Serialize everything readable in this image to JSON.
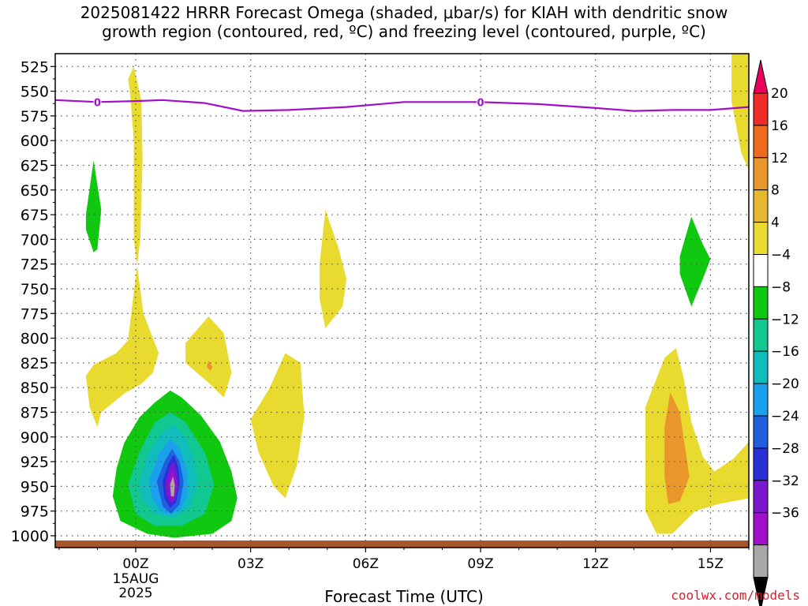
{
  "title": "2025081422 HRRR Forecast Omega (shaded, μbar/s) for KIAH with dendritic snow\ngrowth region (contoured, red, ºC) and freezing level (contoured, purple, ºC)",
  "credit": "coolwx.com/models",
  "chart_data": {
    "type": "heatmap",
    "xlabel": "Forecast Time (UTC)",
    "x_ticks": [
      "00Z",
      "03Z",
      "06Z",
      "09Z",
      "12Z",
      "15Z"
    ],
    "x_first_tick_extra": [
      "15AUG",
      "2025"
    ],
    "x_range_hours": [
      -2.1,
      16
    ],
    "y_ticks": [
      525,
      550,
      575,
      600,
      625,
      650,
      675,
      700,
      725,
      750,
      775,
      800,
      825,
      850,
      875,
      900,
      925,
      950,
      975,
      1000
    ],
    "y_range_hPa": [
      512,
      1012
    ],
    "y_axis_reversed": true,
    "grid": true,
    "colorbar": {
      "labels": [
        "20",
        "16",
        "12",
        "8",
        "4",
        "−4",
        "−8",
        "−12",
        "−16",
        "−20",
        "−24",
        "−28",
        "−32",
        "−36"
      ],
      "colors": [
        "#e8005a",
        "#f02c28",
        "#ee6b1e",
        "#e9972a",
        "#e6b830",
        "#e8da2e",
        "#ffffff",
        "#0fc80f",
        "#10c890",
        "#10bcbc",
        "#1aa0ec",
        "#2060e0",
        "#2a30d8",
        "#7a18d0",
        "#a010c8",
        "#a8a8a8",
        "#000000"
      ]
    },
    "freezing_level": {
      "label": "0",
      "color": "#a010c8",
      "points_h_hPa": [
        [
          -2.1,
          559
        ],
        [
          -1.0,
          561
        ],
        [
          0,
          560
        ],
        [
          0.7,
          559
        ],
        [
          1.8,
          562
        ],
        [
          2.8,
          570
        ],
        [
          4.0,
          569
        ],
        [
          5.5,
          566
        ],
        [
          7.0,
          561
        ],
        [
          8.0,
          561
        ],
        [
          9.0,
          561
        ],
        [
          10.5,
          563
        ],
        [
          12.0,
          567
        ],
        [
          13.0,
          570
        ],
        [
          14.0,
          569
        ],
        [
          15.0,
          569
        ],
        [
          16.0,
          566
        ]
      ],
      "label_positions_h": [
        -1.0,
        9.0
      ]
    },
    "surface_color": "#a8552e",
    "omega_regions": [
      {
        "value": 4,
        "color": "#e8da2e",
        "points_h_hPa": [
          [
            -0.2,
            538
          ],
          [
            -0.05,
            525
          ],
          [
            0.15,
            560
          ],
          [
            0.18,
            620
          ],
          [
            0.12,
            700
          ],
          [
            -0.1,
            770
          ],
          [
            -0.2,
            802
          ],
          [
            -0.5,
            815
          ],
          [
            -1.1,
            827
          ],
          [
            -1.3,
            838
          ],
          [
            -1.2,
            870
          ],
          [
            -1.0,
            890
          ],
          [
            -0.9,
            875
          ],
          [
            -0.3,
            856
          ],
          [
            0.15,
            846
          ],
          [
            0.45,
            835
          ],
          [
            0.6,
            815
          ],
          [
            0.2,
            775
          ],
          [
            -0.05,
            700
          ],
          [
            -0.05,
            600
          ],
          [
            -0.15,
            550
          ]
        ]
      },
      {
        "value": 4,
        "color": "#e8da2e",
        "points_h_hPa": [
          [
            1.3,
            805
          ],
          [
            1.9,
            778
          ],
          [
            2.3,
            795
          ],
          [
            2.5,
            835
          ],
          [
            2.3,
            860
          ],
          [
            1.9,
            845
          ],
          [
            1.3,
            825
          ]
        ]
      },
      {
        "value": 8,
        "color": "#e9972a",
        "points_h_hPa": [
          [
            1.9,
            823
          ],
          [
            2.0,
            829
          ],
          [
            1.95,
            833
          ],
          [
            1.85,
            829
          ]
        ]
      },
      {
        "value": 4,
        "color": "#e8da2e",
        "points_h_hPa": [
          [
            3.0,
            882
          ],
          [
            3.5,
            850
          ],
          [
            3.9,
            815
          ],
          [
            4.3,
            825
          ],
          [
            4.4,
            880
          ],
          [
            4.2,
            930
          ],
          [
            3.9,
            962
          ],
          [
            3.6,
            950
          ],
          [
            3.2,
            915
          ]
        ]
      },
      {
        "value": 4,
        "color": "#e8da2e",
        "points_h_hPa": [
          [
            4.8,
            725
          ],
          [
            4.95,
            670
          ],
          [
            5.3,
            710
          ],
          [
            5.5,
            740
          ],
          [
            5.4,
            768
          ],
          [
            4.95,
            790
          ],
          [
            4.8,
            760
          ]
        ]
      },
      {
        "value": 4,
        "color": "#e8da2e",
        "points_h_hPa": [
          [
            13.3,
            870
          ],
          [
            13.8,
            820
          ],
          [
            14.1,
            810
          ],
          [
            14.3,
            840
          ],
          [
            14.5,
            885
          ],
          [
            14.8,
            920
          ],
          [
            15.1,
            935
          ],
          [
            15.6,
            922
          ],
          [
            16.0,
            905
          ],
          [
            16.0,
            962
          ],
          [
            15.2,
            968
          ],
          [
            14.6,
            975
          ],
          [
            14.0,
            998
          ],
          [
            13.6,
            998
          ],
          [
            13.3,
            975
          ]
        ]
      },
      {
        "value": 8,
        "color": "#e9972a",
        "points_h_hPa": [
          [
            13.8,
            890
          ],
          [
            13.95,
            855
          ],
          [
            14.2,
            875
          ],
          [
            14.45,
            940
          ],
          [
            14.2,
            965
          ],
          [
            13.9,
            968
          ],
          [
            13.8,
            940
          ]
        ]
      },
      {
        "value": 4,
        "color": "#e8da2e",
        "points_h_hPa": [
          [
            15.55,
            512
          ],
          [
            16.0,
            512
          ],
          [
            16.0,
            630
          ],
          [
            15.8,
            612
          ],
          [
            15.55,
            560
          ]
        ]
      },
      {
        "value": -4,
        "color": "#0fc80f",
        "points_h_hPa": [
          [
            -1.3,
            675
          ],
          [
            -1.1,
            620
          ],
          [
            -0.9,
            670
          ],
          [
            -1.0,
            710
          ],
          [
            -1.1,
            713
          ],
          [
            -1.3,
            690
          ]
        ]
      },
      {
        "value": -4,
        "color": "#0fc80f",
        "points_h_hPa": [
          [
            14.2,
            717
          ],
          [
            14.5,
            677
          ],
          [
            14.8,
            705
          ],
          [
            15.0,
            720
          ],
          [
            14.8,
            740
          ],
          [
            14.5,
            768
          ],
          [
            14.2,
            735
          ]
        ]
      },
      {
        "value": -4,
        "color": "#0fc80f",
        "points_h_hPa": [
          [
            -0.6,
            960
          ],
          [
            -0.5,
            932
          ],
          [
            -0.3,
            906
          ],
          [
            0.1,
            880
          ],
          [
            0.5,
            865
          ],
          [
            0.9,
            853
          ],
          [
            1.2,
            860
          ],
          [
            1.7,
            878
          ],
          [
            2.2,
            905
          ],
          [
            2.5,
            935
          ],
          [
            2.65,
            962
          ],
          [
            2.5,
            985
          ],
          [
            2.0,
            998
          ],
          [
            1.0,
            1002
          ],
          [
            0.3,
            998
          ],
          [
            -0.4,
            985
          ]
        ]
      },
      {
        "value": -8,
        "color": "#10c890",
        "points_h_hPa": [
          [
            -0.2,
            948
          ],
          [
            0.1,
            915
          ],
          [
            0.5,
            885
          ],
          [
            0.9,
            875
          ],
          [
            1.3,
            885
          ],
          [
            1.8,
            915
          ],
          [
            2.05,
            948
          ],
          [
            1.8,
            978
          ],
          [
            1.2,
            990
          ],
          [
            0.5,
            990
          ],
          [
            0.0,
            978
          ]
        ]
      },
      {
        "value": -12,
        "color": "#10bcbc",
        "points_h_hPa": [
          [
            0.1,
            945
          ],
          [
            0.35,
            915
          ],
          [
            0.7,
            895
          ],
          [
            1.0,
            888
          ],
          [
            1.3,
            900
          ],
          [
            1.55,
            928
          ],
          [
            1.6,
            950
          ],
          [
            1.4,
            972
          ],
          [
            1.0,
            982
          ],
          [
            0.5,
            978
          ],
          [
            0.15,
            962
          ]
        ]
      },
      {
        "value": -16,
        "color": "#1aa0ec",
        "points_h_hPa": [
          [
            0.35,
            945
          ],
          [
            0.6,
            918
          ],
          [
            0.9,
            902
          ],
          [
            1.15,
            912
          ],
          [
            1.35,
            935
          ],
          [
            1.35,
            960
          ],
          [
            1.15,
            975
          ],
          [
            0.75,
            978
          ],
          [
            0.45,
            965
          ]
        ]
      },
      {
        "value": -20,
        "color": "#2060e0",
        "points_h_hPa": [
          [
            0.55,
            945
          ],
          [
            0.75,
            925
          ],
          [
            0.95,
            912
          ],
          [
            1.15,
            925
          ],
          [
            1.25,
            945
          ],
          [
            1.15,
            968
          ],
          [
            0.92,
            978
          ],
          [
            0.7,
            970
          ]
        ]
      },
      {
        "value": -24,
        "color": "#2a30d8",
        "points_h_hPa": [
          [
            0.7,
            945
          ],
          [
            0.85,
            927
          ],
          [
            1.0,
            918
          ],
          [
            1.12,
            932
          ],
          [
            1.15,
            948
          ],
          [
            1.05,
            966
          ],
          [
            0.9,
            972
          ],
          [
            0.75,
            962
          ]
        ]
      },
      {
        "value": -28,
        "color": "#7a18d0",
        "points_h_hPa": [
          [
            0.78,
            945
          ],
          [
            0.9,
            930
          ],
          [
            1.0,
            925
          ],
          [
            1.08,
            938
          ],
          [
            1.1,
            952
          ],
          [
            1.0,
            966
          ],
          [
            0.88,
            966
          ],
          [
            0.8,
            958
          ]
        ]
      },
      {
        "value": -32,
        "color": "#a010c8",
        "points_h_hPa": [
          [
            0.85,
            945
          ],
          [
            0.95,
            935
          ],
          [
            1.03,
            942
          ],
          [
            1.05,
            955
          ],
          [
            0.98,
            963
          ],
          [
            0.88,
            960
          ]
        ]
      },
      {
        "value": -36,
        "color": "#a8a8a8",
        "points_h_hPa": [
          [
            0.9,
            948
          ],
          [
            0.97,
            940
          ],
          [
            1.02,
            948
          ],
          [
            1.0,
            960
          ],
          [
            0.92,
            960
          ]
        ]
      }
    ]
  }
}
